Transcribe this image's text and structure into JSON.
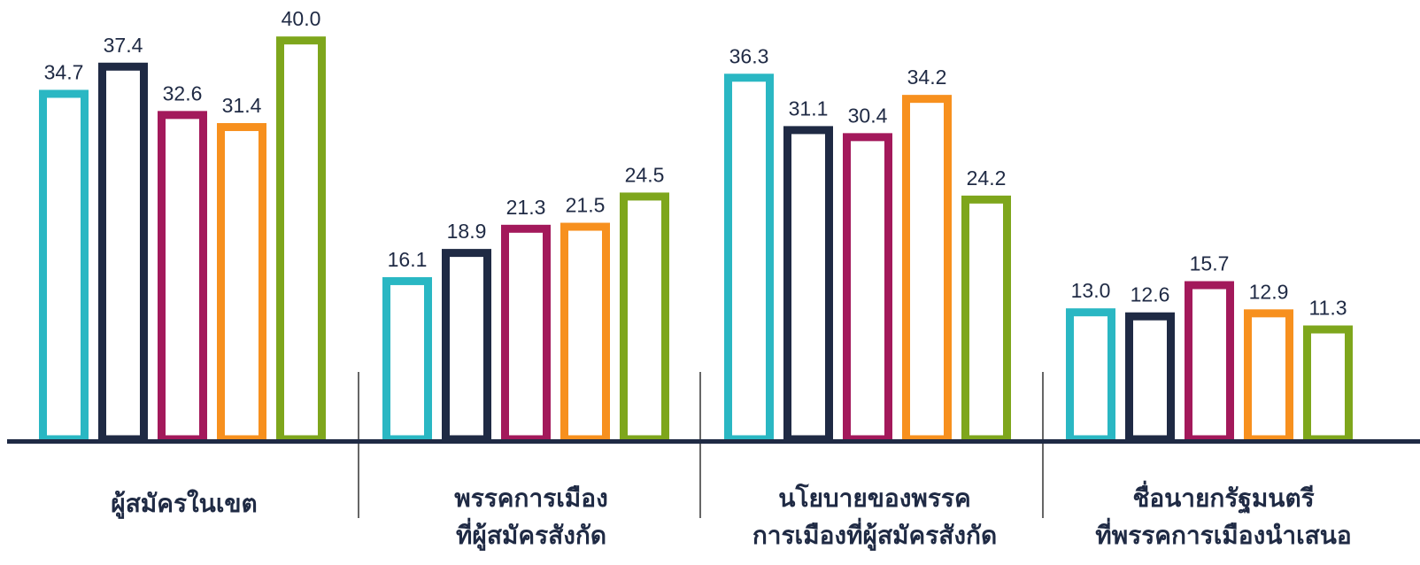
{
  "chart_data": {
    "type": "bar",
    "categories": [
      [
        "ผู้สมัครในเขต"
      ],
      [
        "พรรคการเมือง",
        "ที่ผู้สมัครสังกัด"
      ],
      [
        "นโยบายของพรรค",
        "การเมืองที่ผู้สมัครสังกัด"
      ],
      [
        "ชื่อนายกรัฐมนตรี",
        "ที่พรรคการเมืองนำเสนอ"
      ]
    ],
    "series": [
      {
        "color": "#2ab7c3",
        "values": [
          34.7,
          16.1,
          36.3,
          13.0
        ],
        "labels": [
          "34.7",
          "16.1",
          "36.3",
          "13.0"
        ]
      },
      {
        "color": "#1f2a44",
        "values": [
          37.4,
          18.9,
          31.1,
          12.6
        ],
        "labels": [
          "37.4",
          "18.9",
          "31.1",
          "12.6"
        ]
      },
      {
        "color": "#a3195b",
        "values": [
          32.6,
          21.3,
          30.4,
          15.7
        ],
        "labels": [
          "32.6",
          "21.3",
          "30.4",
          "15.7"
        ]
      },
      {
        "color": "#f7901e",
        "values": [
          31.4,
          21.5,
          34.2,
          12.9
        ],
        "labels": [
          "31.4",
          "21.5",
          "34.2",
          "12.9"
        ]
      },
      {
        "color": "#7ea61c",
        "values": [
          40.0,
          24.5,
          24.2,
          11.3
        ],
        "labels": [
          "40.0",
          "24.5",
          "24.2",
          "11.3"
        ]
      }
    ],
    "ylim": [
      0,
      40
    ],
    "axis_color": "#1f2a44",
    "divider_color": "#333333",
    "title": "",
    "xlabel": "",
    "ylabel": "",
    "grid": false,
    "legend": "none"
  }
}
